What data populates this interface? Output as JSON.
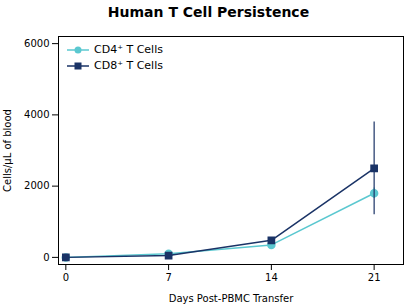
{
  "chart_data": {
    "type": "line",
    "title": "Human T Cell Persistence",
    "x_label": "Days Post-PBMC Transfer",
    "y_label": "Cells/μL of blood",
    "x": [
      0,
      7,
      14,
      21
    ],
    "series": [
      {
        "name": "CD4⁺ T Cells",
        "color": "#5BC8D0",
        "marker": "circle",
        "line_style": "solid",
        "values": [
          0,
          100,
          350,
          1800
        ],
        "error_low": [
          0,
          0,
          40,
          150
        ],
        "error_high": [
          0,
          0,
          40,
          150
        ]
      },
      {
        "name": "CD8⁺ T Cells",
        "color": "#1A3366",
        "marker": "square",
        "line_style": "solid",
        "values": [
          0,
          50,
          480,
          2500
        ],
        "error_low": [
          0,
          0,
          70,
          1300
        ],
        "error_high": [
          0,
          0,
          70,
          1300
        ]
      }
    ],
    "xlim": [
      -0.5,
      23
    ],
    "xticks": [
      0,
      7,
      14,
      21
    ],
    "ylim": [
      -200,
      6200
    ],
    "yticks": [
      0,
      2000,
      4000,
      6000
    ],
    "grid": false,
    "legend": "upper left"
  }
}
